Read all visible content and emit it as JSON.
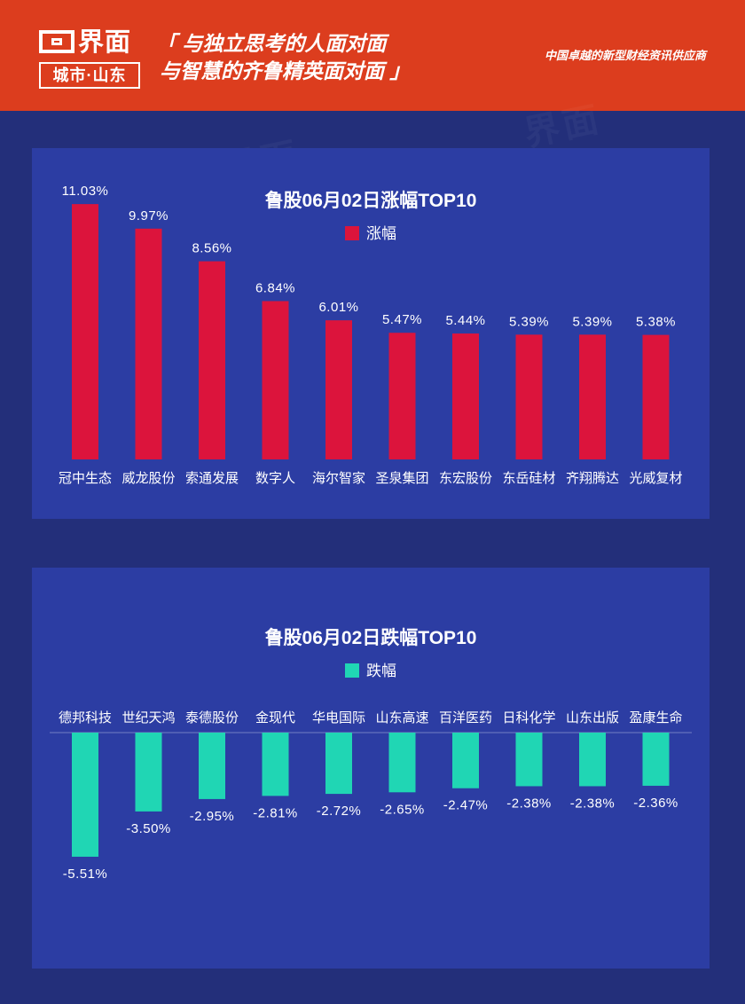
{
  "header": {
    "logo_name": "界面",
    "logo_sub": "城市·山东",
    "slogan_line1": "「 与独立思考的人面对面",
    "slogan_line2": "与智慧的齐鲁精英面对面 」",
    "tagline": "中国卓越的新型财经资讯供应商"
  },
  "colors": {
    "gain": "#dc143c",
    "loss": "#20d6b4",
    "panel": "#2c3da3",
    "background": "#232f7a",
    "header": "#dc3d1e"
  },
  "chart_data": [
    {
      "type": "bar",
      "title": "鲁股06月02日涨幅TOP10",
      "categories": [
        "冠中生态",
        "威龙股份",
        "索通发展",
        "数字人",
        "海尔智家",
        "圣泉集团",
        "东宏股份",
        "东岳硅材",
        "齐翔腾达",
        "光威复材"
      ],
      "series": [
        {
          "name": "涨幅",
          "values": [
            11.03,
            9.97,
            8.56,
            6.84,
            6.01,
            5.47,
            5.44,
            5.39,
            5.39,
            5.38
          ],
          "labels": [
            "11.03%",
            "9.97%",
            "8.56%",
            "6.84%",
            "6.01%",
            "5.47%",
            "5.44%",
            "5.39%",
            "5.39%",
            "5.38%"
          ]
        }
      ],
      "legend": "top",
      "grid": false
    },
    {
      "type": "bar",
      "title": "鲁股06月02日跌幅TOP10",
      "categories": [
        "德邦科技",
        "世纪天鸿",
        "泰德股份",
        "金现代",
        "华电国际",
        "山东高速",
        "百洋医药",
        "日科化学",
        "山东出版",
        "盈康生命"
      ],
      "series": [
        {
          "name": "跌幅",
          "values": [
            -5.51,
            -3.5,
            -2.95,
            -2.81,
            -2.72,
            -2.65,
            -2.47,
            -2.38,
            -2.38,
            -2.36
          ],
          "labels": [
            "-5.51%",
            "-3.50%",
            "-2.95%",
            "-2.81%",
            "-2.72%",
            "-2.65%",
            "-2.47%",
            "-2.38%",
            "-2.38%",
            "-2.36%"
          ]
        }
      ],
      "legend": "top",
      "grid": false
    }
  ]
}
